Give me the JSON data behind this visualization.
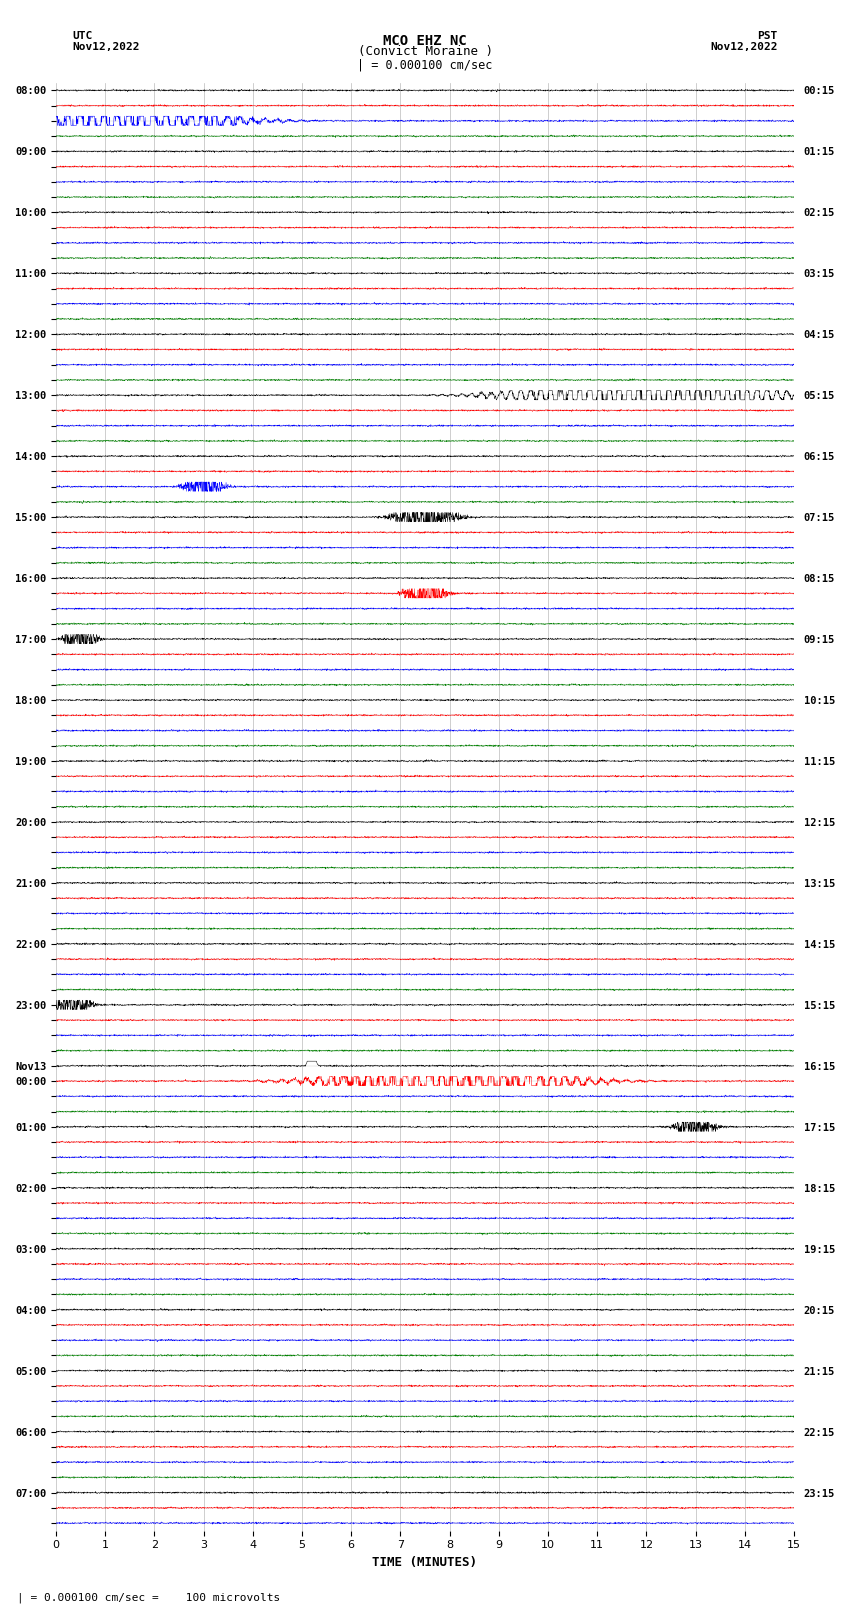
{
  "title_line1": "MCO EHZ NC",
  "title_line2": "(Convict Moraine )",
  "scale_text": "| = 0.000100 cm/sec",
  "utc_label": "UTC",
  "utc_date": "Nov12,2022",
  "pst_label": "PST",
  "pst_date": "Nov12,2022",
  "xlabel": "TIME (MINUTES)",
  "footer_text": "| = 0.000100 cm/sec =    100 microvolts",
  "xlim": [
    0,
    15
  ],
  "xticks": [
    0,
    1,
    2,
    3,
    4,
    5,
    6,
    7,
    8,
    9,
    10,
    11,
    12,
    13,
    14,
    15
  ],
  "colors_cycle": [
    "black",
    "red",
    "blue",
    "green"
  ],
  "background_color": "white",
  "grid_color": "#aaaaaa",
  "fig_width": 8.5,
  "fig_height": 16.13,
  "left_label_times_utc": [
    "08:00",
    "",
    "",
    "",
    "09:00",
    "",
    "",
    "",
    "10:00",
    "",
    "",
    "",
    "11:00",
    "",
    "",
    "",
    "12:00",
    "",
    "",
    "",
    "13:00",
    "",
    "",
    "",
    "14:00",
    "",
    "",
    "",
    "15:00",
    "",
    "",
    "",
    "16:00",
    "",
    "",
    "",
    "17:00",
    "",
    "",
    "",
    "18:00",
    "",
    "",
    "",
    "19:00",
    "",
    "",
    "",
    "20:00",
    "",
    "",
    "",
    "21:00",
    "",
    "",
    "",
    "22:00",
    "",
    "",
    "",
    "23:00",
    "",
    "",
    "",
    "Nov13",
    "00:00",
    "",
    "",
    "01:00",
    "",
    "",
    "",
    "02:00",
    "",
    "",
    "",
    "03:00",
    "",
    "",
    "",
    "04:00",
    "",
    "",
    "",
    "05:00",
    "",
    "",
    "",
    "06:00",
    "",
    "",
    "",
    "07:00",
    "",
    ""
  ],
  "right_label_times_pst": [
    "00:15",
    "",
    "",
    "",
    "01:15",
    "",
    "",
    "",
    "02:15",
    "",
    "",
    "",
    "03:15",
    "",
    "",
    "",
    "04:15",
    "",
    "",
    "",
    "05:15",
    "",
    "",
    "",
    "06:15",
    "",
    "",
    "",
    "07:15",
    "",
    "",
    "",
    "08:15",
    "",
    "",
    "",
    "09:15",
    "",
    "",
    "",
    "10:15",
    "",
    "",
    "",
    "11:15",
    "",
    "",
    "",
    "12:15",
    "",
    "",
    "",
    "13:15",
    "",
    "",
    "",
    "14:15",
    "",
    "",
    "",
    "15:15",
    "",
    "",
    "",
    "16:15",
    "",
    "",
    "",
    "17:15",
    "",
    "",
    "",
    "18:15",
    "",
    "",
    "",
    "19:15",
    "",
    "",
    "",
    "20:15",
    "",
    "",
    "",
    "21:15",
    "",
    "",
    "",
    "22:15",
    "",
    "",
    "",
    "23:15",
    "",
    ""
  ]
}
